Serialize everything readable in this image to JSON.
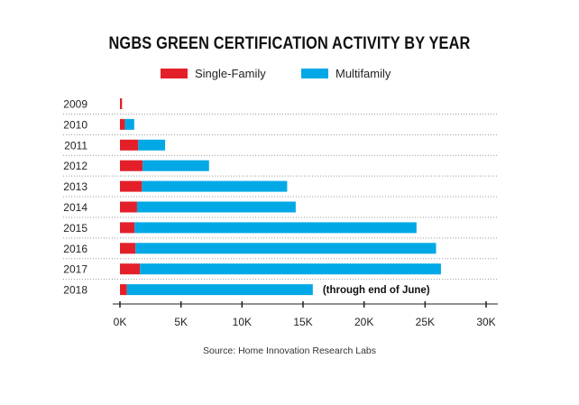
{
  "chart_data": {
    "type": "bar",
    "orientation": "horizontal",
    "stacked": true,
    "title": "NGBS GREEN CERTIFICATION ACTIVITY BY YEAR",
    "categories": [
      "2009",
      "2010",
      "2011",
      "2012",
      "2013",
      "2014",
      "2015",
      "2016",
      "2017",
      "2018"
    ],
    "series": [
      {
        "name": "Single-Family",
        "color": "#e3202a",
        "values": [
          0.17,
          0.4,
          1.5,
          1.86,
          1.8,
          1.4,
          1.2,
          1.27,
          1.64,
          0.57
        ]
      },
      {
        "name": "Multifamily",
        "color": "#00a9e6",
        "values": [
          0,
          0.77,
          2.2,
          5.44,
          11.9,
          13.0,
          23.1,
          24.63,
          24.66,
          15.23
        ]
      }
    ],
    "xlim": [
      0,
      30
    ],
    "xticks": [
      0,
      5,
      10,
      15,
      20,
      25,
      30
    ],
    "xtick_labels": [
      "0K",
      "5K",
      "10K",
      "15K",
      "20K",
      "25K",
      "30K"
    ],
    "legend_position": "top",
    "grid": "dotted horizontal separators",
    "annotations": [
      {
        "category": "2018",
        "text": "(through end of June)"
      }
    ],
    "source": "Source: Home Innovation Research Labs"
  }
}
